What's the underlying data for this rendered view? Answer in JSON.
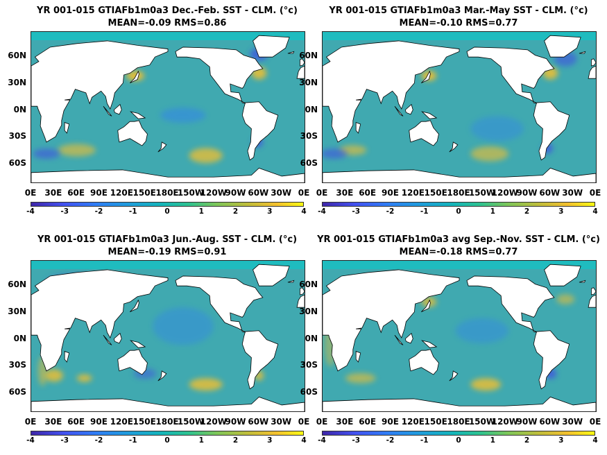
{
  "colors": {
    "ocean_base": "#3fa7b4",
    "land": "#ffffff",
    "warm_anomaly": "#f3c02f",
    "cool_anomaly": "#3f51e0"
  },
  "chart_data": [
    {
      "type": "heatmap",
      "title": "YR 001-015 GTIAFb1m0a3  Dec.-Feb. SST - CLM. (°c)",
      "subtitle": "MEAN=-0.09   RMS=0.86",
      "mean": -0.09,
      "rms": 0.86,
      "ytick_labels": [
        "60N",
        "30N",
        "0N",
        "30S",
        "60S"
      ],
      "xtick_labels": [
        "0E",
        "30E",
        "60E",
        "90E",
        "120E",
        "150E",
        "180E",
        "150W",
        "120W",
        "90W",
        "60W",
        "30W",
        "0E"
      ],
      "colorbar_ticks": [
        "-4",
        "-3",
        "-2",
        "-1",
        "0",
        "1",
        "2",
        "3",
        "4"
      ],
      "clim": [
        -4,
        4
      ]
    },
    {
      "type": "heatmap",
      "title": "YR 001-015 GTIAFb1m0a3 Mar.-May SST - CLM. (°c)",
      "subtitle": "MEAN=-0.10   RMS=0.77",
      "mean": -0.1,
      "rms": 0.77,
      "ytick_labels": [
        "60N",
        "30N",
        "0N",
        "30S",
        "60S"
      ],
      "xtick_labels": [
        "0E",
        "30E",
        "60E",
        "90E",
        "120E",
        "150E",
        "180E",
        "150W",
        "120W",
        "90W",
        "60W",
        "30W",
        "0E"
      ],
      "colorbar_ticks": [
        "-4",
        "-3",
        "-2",
        "-1",
        "0",
        "1",
        "2",
        "3",
        "4"
      ],
      "clim": [
        -4,
        4
      ]
    },
    {
      "type": "heatmap",
      "title": "YR 001-015 GTIAFb1m0a3 Jun.-Aug. SST - CLM. (°c)",
      "subtitle": "MEAN=-0.19   RMS=0.91",
      "mean": -0.19,
      "rms": 0.91,
      "ytick_labels": [
        "60N",
        "30N",
        "0N",
        "30S",
        "60S"
      ],
      "xtick_labels": [
        "0E",
        "30E",
        "60E",
        "90E",
        "120E",
        "150E",
        "180E",
        "150W",
        "120W",
        "90W",
        "60W",
        "30W",
        "0E"
      ],
      "colorbar_ticks": [
        "-4",
        "-3",
        "-2",
        "-1",
        "0",
        "1",
        "2",
        "3",
        "4"
      ],
      "clim": [
        -4,
        4
      ]
    },
    {
      "type": "heatmap",
      "title": "YR 001-015 GTIAFb1m0a3 avg Sep.-Nov. SST - CLM. (°c)",
      "subtitle": "MEAN=-0.18   RMS=0.77",
      "mean": -0.18,
      "rms": 0.77,
      "ytick_labels": [
        "60N",
        "30N",
        "0N",
        "30S",
        "60S"
      ],
      "xtick_labels": [
        "0E",
        "30E",
        "60E",
        "90E",
        "120E",
        "150E",
        "180E",
        "150W",
        "120W",
        "90W",
        "60W",
        "30W",
        "0E"
      ],
      "colorbar_ticks": [
        "-4",
        "-3",
        "-2",
        "-1",
        "0",
        "1",
        "2",
        "3",
        "4"
      ],
      "clim": [
        -4,
        4
      ]
    }
  ]
}
